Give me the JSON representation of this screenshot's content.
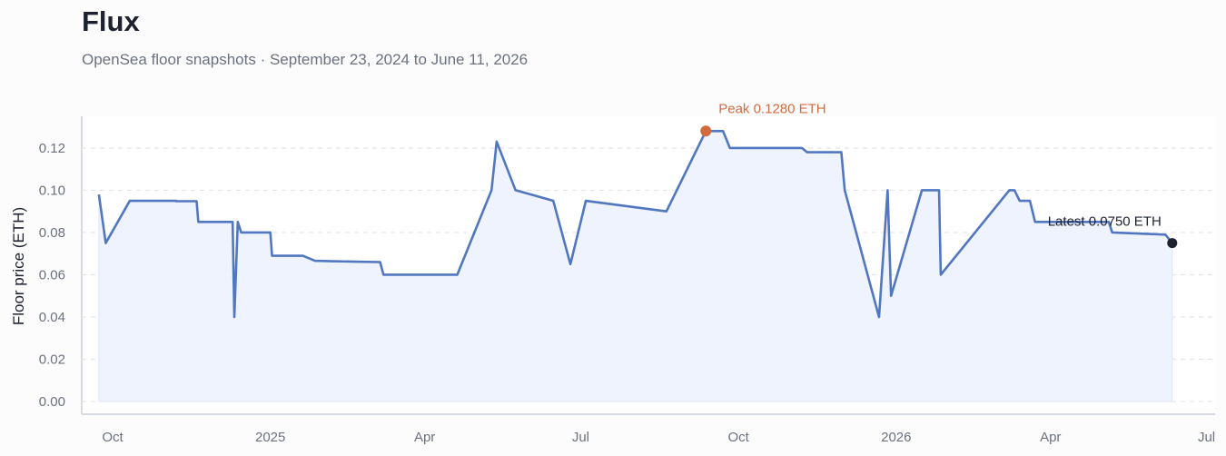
{
  "header": {
    "title": "Flux",
    "subtitle": "OpenSea floor snapshots · September 23, 2024 to June 11, 2026"
  },
  "colors": {
    "line": "#5277c1",
    "fill": "#eef3fd",
    "peak": "#d26b3f",
    "latest": "#1d2130",
    "grid": "#e2e5ec",
    "axis": "#d6d9e6"
  },
  "chart_data": {
    "type": "area",
    "title": "Flux",
    "subtitle": "OpenSea floor snapshots · September 23, 2024 to June 11, 2026",
    "xlabel": "",
    "ylabel": "Floor price (ETH)",
    "ylim": [
      -0.006,
      0.135
    ],
    "xlim": [
      "2024-09-13",
      "2026-07-06"
    ],
    "grid": true,
    "legend": "none",
    "yticks": [
      0.0,
      0.02,
      0.04,
      0.06,
      0.08,
      0.1,
      0.12
    ],
    "ytick_labels": [
      "0.00",
      "0.02",
      "0.04",
      "0.06",
      "0.08",
      "0.10",
      "0.12"
    ],
    "xticks": [
      {
        "date": "2024-10-01",
        "label": "Oct"
      },
      {
        "date": "2025-01-01",
        "label": "2025"
      },
      {
        "date": "2025-04-01",
        "label": "Apr"
      },
      {
        "date": "2025-07-01",
        "label": "Jul"
      },
      {
        "date": "2025-10-01",
        "label": "Oct"
      },
      {
        "date": "2026-01-01",
        "label": "2026"
      },
      {
        "date": "2026-04-01",
        "label": "Apr"
      },
      {
        "date": "2026-07-01",
        "label": "Jul"
      }
    ],
    "series": [
      {
        "points": [
          [
            "2024-09-23",
            0.098
          ],
          [
            "2024-09-27",
            0.075
          ],
          [
            "2024-10-11",
            0.095
          ],
          [
            "2024-11-07",
            0.095
          ],
          [
            "2024-11-07",
            0.0948
          ],
          [
            "2024-11-19",
            0.0948
          ],
          [
            "2024-11-20",
            0.085
          ],
          [
            "2024-12-10",
            0.085
          ],
          [
            "2024-12-11",
            0.04
          ],
          [
            "2024-12-13",
            0.085
          ],
          [
            "2024-12-15",
            0.08
          ],
          [
            "2025-01-01",
            0.08
          ],
          [
            "2025-01-02",
            0.069
          ],
          [
            "2025-01-20",
            0.069
          ],
          [
            "2025-01-27",
            0.0666
          ],
          [
            "2025-02-06",
            0.0664
          ],
          [
            "2025-02-20",
            0.0662
          ],
          [
            "2025-03-06",
            0.066
          ],
          [
            "2025-03-08",
            0.06
          ],
          [
            "2025-04-20",
            0.06
          ],
          [
            "2025-05-10",
            0.1
          ],
          [
            "2025-05-13",
            0.123
          ],
          [
            "2025-05-24",
            0.1
          ],
          [
            "2025-06-15",
            0.095
          ],
          [
            "2025-06-25",
            0.065
          ],
          [
            "2025-07-04",
            0.095
          ],
          [
            "2025-08-20",
            0.09
          ],
          [
            "2025-09-12",
            0.128
          ],
          [
            "2025-09-22",
            0.128
          ],
          [
            "2025-09-26",
            0.12
          ],
          [
            "2025-11-07",
            0.12
          ],
          [
            "2025-11-10",
            0.118
          ],
          [
            "2025-11-30",
            0.118
          ],
          [
            "2025-12-02",
            0.1
          ],
          [
            "2025-12-22",
            0.04
          ],
          [
            "2025-12-27",
            0.1
          ],
          [
            "2025-12-29",
            0.05
          ],
          [
            "2026-01-16",
            0.1
          ],
          [
            "2026-01-26",
            0.1
          ],
          [
            "2026-01-27",
            0.06
          ],
          [
            "2026-03-08",
            0.1
          ],
          [
            "2026-03-11",
            0.1
          ],
          [
            "2026-03-14",
            0.095
          ],
          [
            "2026-03-20",
            0.095
          ],
          [
            "2026-03-23",
            0.085
          ],
          [
            "2026-05-05",
            0.085
          ],
          [
            "2026-05-07",
            0.08
          ],
          [
            "2026-06-07",
            0.079
          ],
          [
            "2026-06-11",
            0.075
          ]
        ]
      }
    ],
    "annotations": {
      "peak": {
        "date": "2025-09-12",
        "value": 0.128,
        "label": "Peak 0.1280 ETH"
      },
      "latest": {
        "date": "2026-06-11",
        "value": 0.075,
        "label": "Latest 0.0750 ETH"
      }
    }
  }
}
